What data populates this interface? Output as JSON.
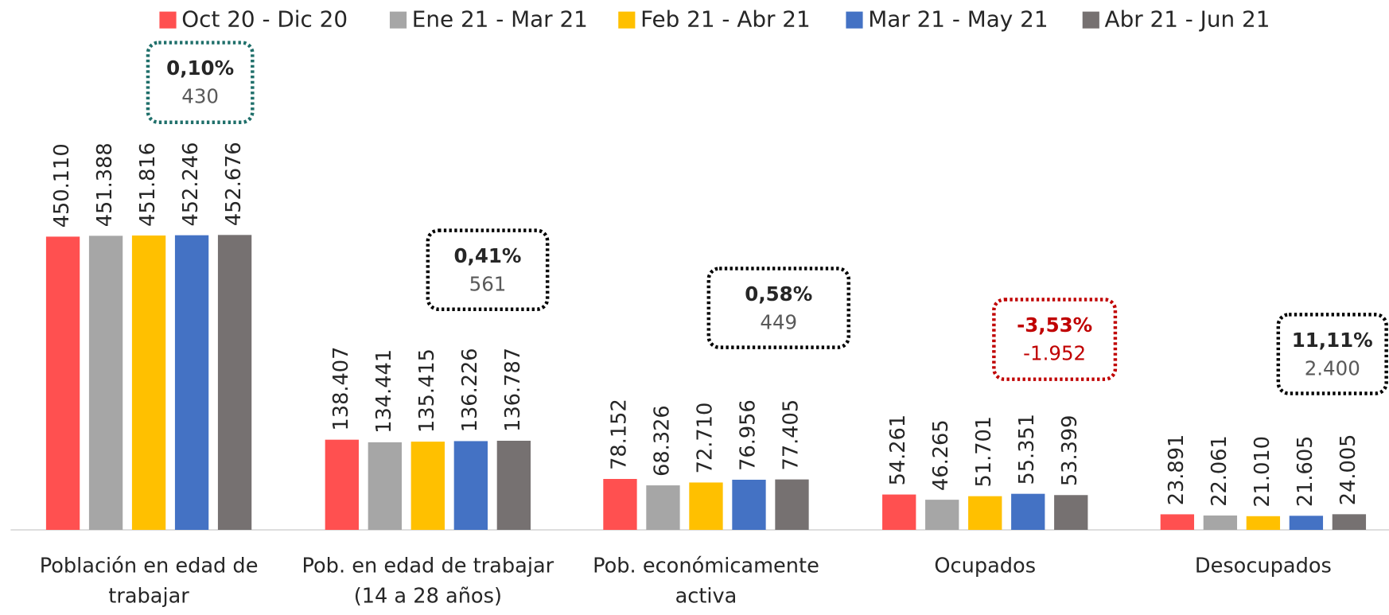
{
  "chart_data": {
    "type": "bar",
    "categories": [
      "Población en edad de trabajar",
      "Pob. en edad de trabajar (14 a 28 años)",
      "Pob. económicamente activa",
      "Ocupados",
      "Desocupados"
    ],
    "series": [
      {
        "name": "Oct 20 - Dic 20",
        "color": "#ff5050",
        "values": [
          450110,
          138407,
          78152,
          54261,
          23891
        ],
        "value_labels": [
          "450.110",
          "138.407",
          "78.152",
          "54.261",
          "23.891"
        ]
      },
      {
        "name": "Ene 21 - Mar 21",
        "color": "#a6a6a6",
        "values": [
          451388,
          134441,
          68326,
          46265,
          22061
        ],
        "value_labels": [
          "451.388",
          "134.441",
          "68.326",
          "46.265",
          "22.061"
        ]
      },
      {
        "name": "Feb 21 - Abr 21",
        "color": "#ffc000",
        "values": [
          451816,
          135415,
          72710,
          51701,
          21010
        ],
        "value_labels": [
          "451.816",
          "135.415",
          "72.710",
          "51.701",
          "21.010"
        ]
      },
      {
        "name": "Mar 21 - May 21",
        "color": "#4472c4",
        "values": [
          452246,
          136226,
          76956,
          55351,
          21605
        ],
        "value_labels": [
          "452.246",
          "136.226",
          "76.956",
          "55.351",
          "21.605"
        ]
      },
      {
        "name": "Abr 21 - Jun 21",
        "color": "#767171",
        "values": [
          452676,
          136787,
          77405,
          53399,
          24005
        ],
        "value_labels": [
          "452.676",
          "136.787",
          "77.405",
          "53.399",
          "24.005"
        ]
      }
    ],
    "annotations": [
      {
        "percent": "0,10%",
        "value": "430",
        "border_color": "#1f6f6a",
        "text_color": "#262626"
      },
      {
        "percent": "0,41%",
        "value": "561",
        "border_color": "#000000",
        "text_color": "#262626"
      },
      {
        "percent": "0,58%",
        "value": "449",
        "border_color": "#000000",
        "text_color": "#262626"
      },
      {
        "percent": "-3,53%",
        "value": "-1.952",
        "border_color": "#c00000",
        "text_color": "#c00000"
      },
      {
        "percent": "11,11%",
        "value": "2.400",
        "border_color": "#000000",
        "text_color": "#262626"
      }
    ],
    "legend": "top"
  }
}
